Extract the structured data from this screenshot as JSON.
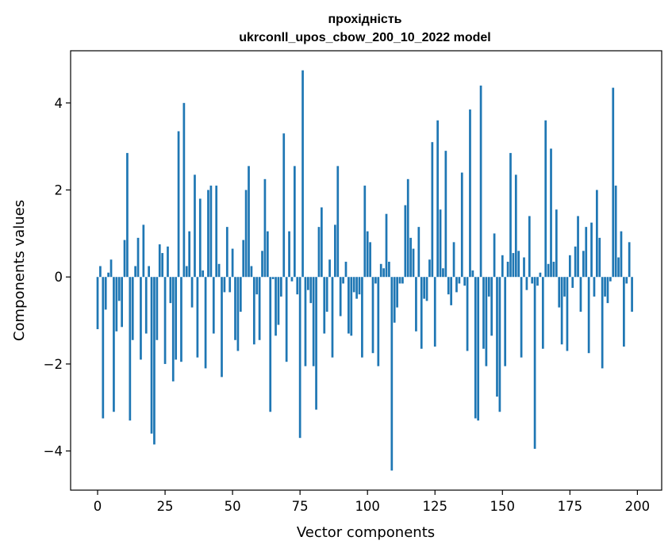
{
  "chart_data": {
    "type": "bar",
    "title": "прохідність",
    "subtitle": "ukrconll_upos_cbow_200_10_2022 model",
    "xlabel": "Vector components",
    "ylabel": "Components values",
    "xlim": [
      -10,
      209
    ],
    "ylim": [
      -4.9,
      5.2
    ],
    "xticks": [
      0,
      25,
      50,
      75,
      100,
      125,
      150,
      175,
      200
    ],
    "yticks": [
      -4,
      -2,
      0,
      2,
      4
    ],
    "xtick_labels": [
      "0",
      "25",
      "50",
      "75",
      "100",
      "125",
      "150",
      "175",
      "200"
    ],
    "ytick_labels": [
      "−4",
      "−2",
      "0",
      "2",
      "4"
    ],
    "bar_color": "#1f77b4",
    "values": [
      -1.2,
      0.25,
      -3.25,
      -0.75,
      0.1,
      0.4,
      -3.1,
      -1.25,
      -0.55,
      -1.15,
      0.85,
      2.85,
      -3.3,
      -1.45,
      0.25,
      0.9,
      -1.9,
      1.2,
      -1.3,
      0.25,
      -3.6,
      -3.85,
      -1.45,
      0.75,
      0.55,
      -2.0,
      0.7,
      -0.6,
      -2.4,
      -1.9,
      3.35,
      -1.95,
      4.0,
      0.25,
      1.05,
      -0.7,
      2.35,
      -1.85,
      1.8,
      0.15,
      -2.1,
      2.0,
      2.1,
      -1.3,
      2.1,
      0.3,
      -2.3,
      -0.35,
      1.15,
      -0.35,
      0.65,
      -1.45,
      -1.7,
      -0.8,
      0.85,
      2.0,
      2.55,
      0.25,
      -1.55,
      -0.4,
      -1.45,
      0.6,
      2.25,
      1.05,
      -3.1,
      -0.05,
      -1.35,
      -1.1,
      -0.45,
      3.3,
      -1.95,
      1.05,
      -0.1,
      2.55,
      -0.4,
      -3.7,
      4.75,
      -2.05,
      -0.3,
      -0.6,
      -2.05,
      -3.05,
      1.15,
      1.6,
      -1.3,
      -0.8,
      0.4,
      -1.85,
      1.2,
      2.55,
      -0.9,
      -0.15,
      0.35,
      -1.3,
      -1.35,
      -0.35,
      -0.5,
      -0.4,
      -1.85,
      2.1,
      1.05,
      0.8,
      -1.75,
      -0.15,
      -2.05,
      0.3,
      0.2,
      1.45,
      0.35,
      -4.45,
      -1.05,
      -0.7,
      -0.15,
      -0.15,
      1.65,
      2.25,
      0.9,
      0.65,
      -1.25,
      1.15,
      -1.65,
      -0.5,
      -0.55,
      0.4,
      3.1,
      -1.6,
      3.6,
      1.55,
      0.2,
      2.9,
      -0.4,
      -0.65,
      0.8,
      -0.35,
      -0.15,
      2.4,
      -0.2,
      -1.7,
      3.85,
      0.15,
      -3.25,
      -3.3,
      4.4,
      -1.65,
      -2.05,
      -0.45,
      -1.35,
      1.0,
      -2.75,
      -3.1,
      0.5,
      -2.05,
      0.35,
      2.85,
      0.55,
      2.35,
      0.6,
      -1.85,
      0.45,
      -0.3,
      1.4,
      -0.15,
      -3.95,
      -0.2,
      0.1,
      -1.65,
      3.6,
      0.3,
      2.95,
      0.35,
      1.55,
      -0.7,
      -1.55,
      -0.45,
      -1.7,
      0.5,
      -0.25,
      0.7,
      1.4,
      -0.8,
      0.6,
      1.15,
      -1.75,
      1.25,
      -0.45,
      2.0,
      0.9,
      -2.1,
      -0.45,
      -0.6,
      -0.1,
      4.35,
      2.1,
      0.45,
      1.05,
      -1.6,
      -0.15,
      0.8,
      -0.8
    ]
  }
}
